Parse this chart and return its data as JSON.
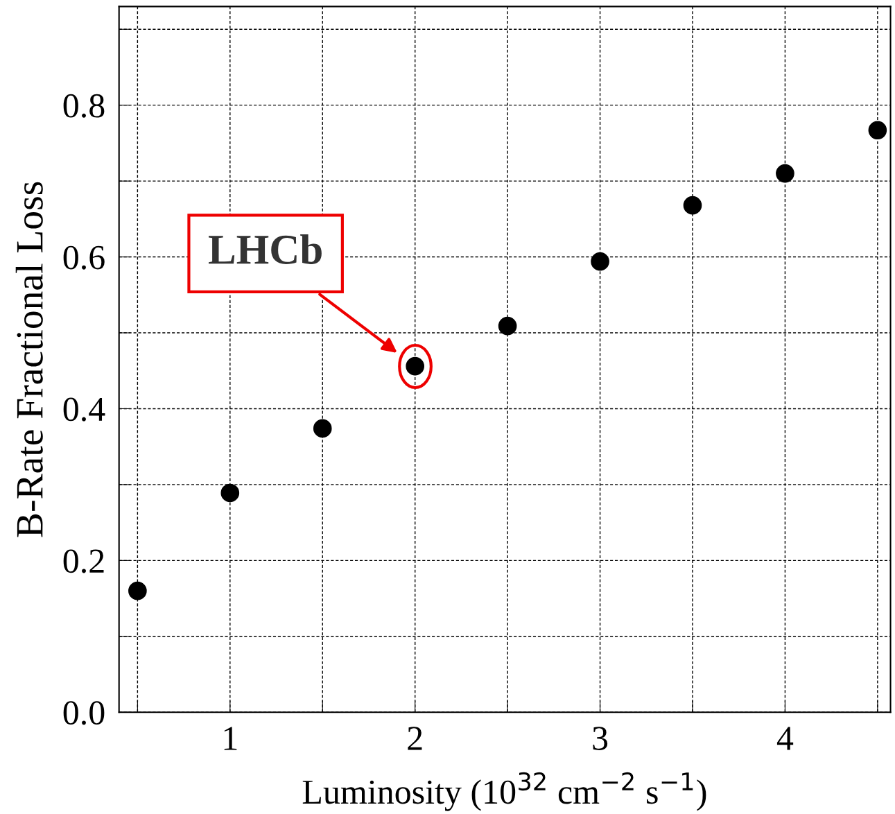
{
  "chart_data": {
    "type": "scatter",
    "xlabel": "Luminosity (10$^{32}$ cm$^{−2}$ s$^{−1}$)",
    "ylabel": "B-Rate Fractional Loss",
    "x": [
      0.5,
      1,
      1.5,
      2,
      2.5,
      3,
      3.5,
      4,
      4.5
    ],
    "series": [
      {
        "color": "#000000",
        "values": [
          0.16,
          0.289,
          0.374,
          0.456,
          0.509,
          0.594,
          0.668,
          0.71,
          0.767
        ]
      }
    ],
    "marker": "circle",
    "grid": true,
    "xlim": [
      0.4,
      4.57
    ],
    "ylim": [
      0,
      0.93
    ],
    "xticks": [
      {
        "value": 0.5,
        "label": null
      },
      1,
      {
        "value": 1.5,
        "label": null
      },
      2,
      {
        "value": 2.5,
        "label": null
      },
      3,
      {
        "value": 3.5,
        "label": null
      },
      4,
      {
        "value": 4.5,
        "label": null
      }
    ],
    "yticks": [
      {
        "value": 0,
        "label": "0.0"
      },
      {
        "value": 0.1,
        "label": null
      },
      0.2,
      {
        "value": 0.3,
        "label": null
      },
      0.4,
      {
        "value": 0.5,
        "label": null
      },
      0.6,
      {
        "value": 0.7,
        "label": null
      },
      0.8,
      {
        "value": 0.9,
        "label": null
      }
    ],
    "annotations": [
      "LHCb"
    ]
  }
}
